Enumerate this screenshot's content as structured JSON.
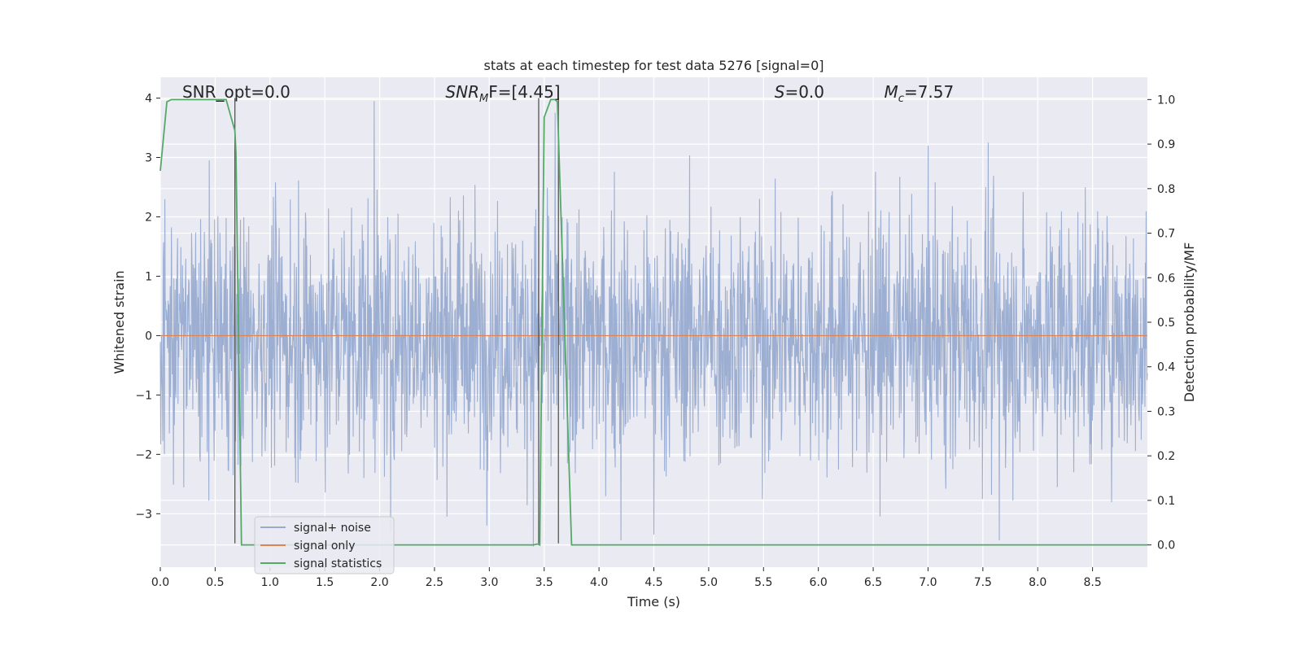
{
  "chart_data": {
    "type": "line",
    "title": "stats at each timestep for test data 5276 [signal=0]",
    "xlabel": "Time (s)",
    "ylabel_left": "Whitened strain",
    "ylabel_right": "Detection probability/MF",
    "xlim": [
      0,
      9.0
    ],
    "ylim_left": [
      -3.9,
      4.35
    ],
    "ylim_right": [
      -0.05,
      1.05
    ],
    "x_ticks": [
      0.0,
      0.5,
      1.0,
      1.5,
      2.0,
      2.5,
      3.0,
      3.5,
      4.0,
      4.5,
      5.0,
      5.5,
      6.0,
      6.5,
      7.0,
      7.5,
      8.0,
      8.5
    ],
    "x_tick_labels": [
      "0.0",
      "0.5",
      "1.0",
      "1.5",
      "2.0",
      "2.5",
      "3.0",
      "3.5",
      "4.0",
      "4.5",
      "5.0",
      "5.5",
      "6.0",
      "6.5",
      "7.0",
      "7.5",
      "8.0",
      "8.5"
    ],
    "y_left_ticks": [
      -3,
      -2,
      -1,
      0,
      1,
      2,
      3,
      4
    ],
    "y_left_tick_labels": [
      "−3",
      "−2",
      "−1",
      "0",
      "1",
      "2",
      "3",
      "4"
    ],
    "y_right_ticks": [
      0.0,
      0.1,
      0.2,
      0.3,
      0.4,
      0.5,
      0.6,
      0.7,
      0.8,
      0.9,
      1.0
    ],
    "y_right_tick_labels": [
      "0.0",
      "0.1",
      "0.2",
      "0.3",
      "0.4",
      "0.5",
      "0.6",
      "0.7",
      "0.8",
      "0.9",
      "1.0"
    ],
    "grid": true,
    "legend_position": "lower-left",
    "colors": {
      "background": "#eaeaf2",
      "grid": "#ffffff",
      "noise": "#98abcf",
      "signal_only": "#dd8452",
      "statistics": "#55a868",
      "marker_line": "#555555"
    },
    "series": [
      {
        "name": "signal+ noise",
        "axis": "left",
        "description_kind": "dense noise trace",
        "approx_range": [
          -3.5,
          4.0
        ],
        "spikes": [
          {
            "x": 1.95,
            "y": 3.95
          },
          {
            "x": 3.6,
            "y": 3.75
          },
          {
            "x": 7.55,
            "y": 3.25
          },
          {
            "x": 2.1,
            "y": -3.3
          },
          {
            "x": 3.4,
            "y": -3.55
          },
          {
            "x": 4.2,
            "y": -3.45
          },
          {
            "x": 4.5,
            "y": -3.35
          },
          {
            "x": 7.65,
            "y": -3.45
          }
        ]
      },
      {
        "name": "signal only",
        "axis": "left",
        "x": [
          0.0,
          9.0
        ],
        "y": [
          0.0,
          0.0
        ]
      },
      {
        "name": "signal statistics",
        "axis": "right",
        "x": [
          0.0,
          0.06,
          0.1,
          0.5,
          0.6,
          0.68,
          0.69,
          0.74,
          3.4,
          3.44,
          3.46,
          3.5,
          3.56,
          3.6,
          3.62,
          3.75,
          9.0
        ],
        "y": [
          0.84,
          0.995,
          1.0,
          1.0,
          1.0,
          0.93,
          0.88,
          0.0,
          0.0,
          0.002,
          0.0,
          0.96,
          1.0,
          1.0,
          0.995,
          0.0,
          0.0
        ]
      }
    ],
    "vertical_markers": [
      {
        "x": 0.68,
        "y_from": -3.5,
        "y_to": 4.0
      },
      {
        "x": 3.45,
        "y_from": -3.5,
        "y_to": 4.0
      },
      {
        "x": 3.63,
        "y_from": -3.5,
        "y_to": 4.0
      }
    ],
    "annotations": [
      {
        "text": "SNR_opt=0.0",
        "x": 0.2,
        "y_frac_right": 1.01
      },
      {
        "text_main": "SNR",
        "text_sub": "M",
        "text_tail": "F=[4.45]",
        "x": 2.6,
        "y_frac_right": 1.01
      },
      {
        "text_main": "S",
        "text_tail": "=0.0",
        "x": 5.6,
        "y_frac_right": 1.01
      },
      {
        "text_main": "M",
        "text_sub": "c",
        "text_tail": "=7.57",
        "x": 6.6,
        "y_frac_right": 1.01
      }
    ],
    "legend": [
      {
        "label": "signal+ noise",
        "color": "#98abcf"
      },
      {
        "label": "signal only",
        "color": "#dd8452"
      },
      {
        "label": "signal statistics",
        "color": "#55a868"
      }
    ]
  }
}
